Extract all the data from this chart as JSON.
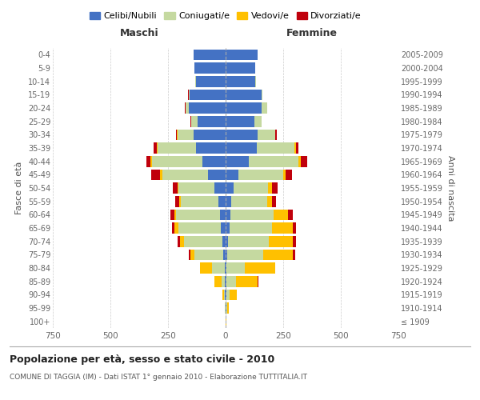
{
  "age_groups": [
    "100+",
    "95-99",
    "90-94",
    "85-89",
    "80-84",
    "75-79",
    "70-74",
    "65-69",
    "60-64",
    "55-59",
    "50-54",
    "45-49",
    "40-44",
    "35-39",
    "30-34",
    "25-29",
    "20-24",
    "15-19",
    "10-14",
    "5-9",
    "0-4"
  ],
  "birth_years": [
    "≤ 1909",
    "1910-1914",
    "1915-1919",
    "1920-1924",
    "1925-1929",
    "1930-1934",
    "1935-1939",
    "1940-1944",
    "1945-1949",
    "1950-1954",
    "1955-1959",
    "1960-1964",
    "1965-1969",
    "1970-1974",
    "1975-1979",
    "1980-1984",
    "1985-1989",
    "1990-1994",
    "1995-1999",
    "2000-2004",
    "2005-2009"
  ],
  "males": {
    "celibi": [
      0,
      1,
      2,
      3,
      5,
      10,
      15,
      20,
      25,
      30,
      50,
      75,
      100,
      130,
      140,
      120,
      160,
      155,
      130,
      135,
      140
    ],
    "coniugati": [
      0,
      2,
      5,
      15,
      55,
      125,
      165,
      185,
      190,
      165,
      155,
      200,
      220,
      165,
      70,
      30,
      15,
      5,
      2,
      0,
      0
    ],
    "vedovi": [
      0,
      2,
      8,
      30,
      50,
      18,
      18,
      18,
      8,
      5,
      5,
      8,
      5,
      5,
      2,
      0,
      0,
      0,
      0,
      0,
      0
    ],
    "divorziati": [
      0,
      0,
      0,
      2,
      2,
      5,
      10,
      10,
      15,
      18,
      18,
      40,
      20,
      12,
      5,
      2,
      2,
      2,
      0,
      0,
      0
    ]
  },
  "females": {
    "nubili": [
      0,
      2,
      4,
      5,
      5,
      8,
      12,
      18,
      20,
      25,
      35,
      55,
      100,
      135,
      140,
      125,
      155,
      155,
      130,
      130,
      140
    ],
    "coniugate": [
      0,
      5,
      15,
      40,
      80,
      155,
      175,
      185,
      190,
      155,
      150,
      195,
      215,
      165,
      75,
      30,
      25,
      5,
      2,
      0,
      0
    ],
    "vedove": [
      2,
      8,
      30,
      95,
      130,
      130,
      105,
      90,
      60,
      20,
      15,
      12,
      10,
      5,
      2,
      0,
      0,
      0,
      0,
      0,
      0
    ],
    "divorziate": [
      0,
      0,
      0,
      2,
      2,
      10,
      15,
      12,
      20,
      20,
      25,
      25,
      30,
      12,
      5,
      2,
      0,
      0,
      0,
      0,
      0
    ]
  },
  "colors": {
    "celibi_nubili": "#4472c4",
    "coniugati": "#c5d9a0",
    "vedovi": "#ffc000",
    "divorziati": "#c0000c"
  },
  "title": "Popolazione per età, sesso e stato civile - 2010",
  "subtitle": "COMUNE DI TAGGIA (IM) - Dati ISTAT 1° gennaio 2010 - Elaborazione TUTTITALIA.IT",
  "ylabel_left": "Fasce di età",
  "ylabel_right": "Anni di nascita",
  "xlabel_left": "Maschi",
  "xlabel_right": "Femmine",
  "xlim": 750,
  "legend_labels": [
    "Celibi/Nubili",
    "Coniugati/e",
    "Vedovi/e",
    "Divorziati/e"
  ],
  "background_color": "#ffffff",
  "grid_color": "#cccccc"
}
